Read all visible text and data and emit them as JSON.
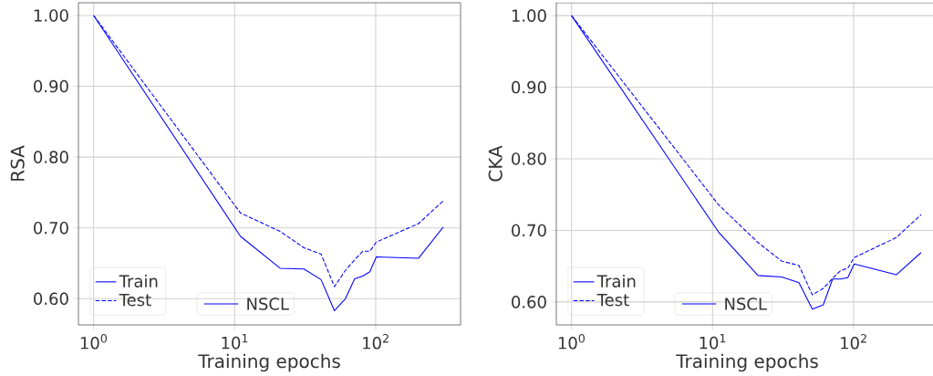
{
  "chart_data": [
    {
      "type": "line",
      "xlabel": "Training epochs",
      "ylabel": "RSA",
      "log": "x",
      "grid": true,
      "legend": "bottom left",
      "legend_title": "NSCL",
      "x": [
        1,
        11,
        21,
        31,
        41,
        51,
        61,
        71,
        81,
        91,
        101,
        201,
        301
      ],
      "xlim": [
        0.78,
        400
      ],
      "xticks": [
        {
          "value": 1,
          "label": "10$^{0}$"
        },
        {
          "value": 10,
          "label": "10$^{1}$"
        },
        {
          "value": 100,
          "label": "10$^{2}$"
        }
      ],
      "ylim": [
        0.563,
        1.018
      ],
      "yticks": [
        {
          "value": 0.6,
          "label": "0.60"
        },
        {
          "value": 0.7,
          "label": "0.70"
        },
        {
          "value": 0.8,
          "label": "0.80"
        },
        {
          "value": 0.9,
          "label": "0.90"
        },
        {
          "value": 1.0,
          "label": "1.00"
        }
      ],
      "series": [
        {
          "name": "Train",
          "color": "#0000ff",
          "line_style": "solid",
          "values": [
            1.0,
            0.688,
            0.643,
            0.642,
            0.627,
            0.583,
            0.6,
            0.628,
            0.632,
            0.638,
            0.659,
            0.657,
            0.701
          ]
        },
        {
          "name": "Test",
          "color": "#0000ff",
          "line_style": "dashed",
          "values": [
            1.0,
            0.721,
            0.695,
            0.672,
            0.663,
            0.617,
            0.64,
            0.655,
            0.667,
            0.667,
            0.68,
            0.706,
            0.738
          ]
        }
      ]
    },
    {
      "type": "line",
      "xlabel": "Training epochs",
      "ylabel": "CKA",
      "log": "x",
      "grid": true,
      "legend": "bottom left",
      "legend_title": "NSCL",
      "x": [
        1,
        11,
        21,
        31,
        41,
        51,
        61,
        71,
        81,
        91,
        101,
        201,
        301
      ],
      "xlim": [
        0.78,
        400
      ],
      "xticks": [
        {
          "value": 1,
          "label": "10$^{0}$"
        },
        {
          "value": 10,
          "label": "10$^{1}$"
        },
        {
          "value": 100,
          "label": "10$^{2}$"
        }
      ],
      "ylim": [
        0.568,
        1.018
      ],
      "yticks": [
        {
          "value": 0.6,
          "label": "0.60"
        },
        {
          "value": 0.7,
          "label": "0.70"
        },
        {
          "value": 0.8,
          "label": "0.80"
        },
        {
          "value": 0.9,
          "label": "0.90"
        },
        {
          "value": 1.0,
          "label": "1.00"
        }
      ],
      "series": [
        {
          "name": "Train",
          "color": "#0000ff",
          "line_style": "solid",
          "values": [
            1.0,
            0.698,
            0.637,
            0.635,
            0.627,
            0.59,
            0.596,
            0.632,
            0.632,
            0.634,
            0.653,
            0.638,
            0.669
          ]
        },
        {
          "name": "Test",
          "color": "#0000ff",
          "line_style": "dashed",
          "values": [
            1.0,
            0.736,
            0.683,
            0.657,
            0.651,
            0.61,
            0.619,
            0.633,
            0.644,
            0.647,
            0.662,
            0.69,
            0.722
          ]
        }
      ]
    }
  ]
}
